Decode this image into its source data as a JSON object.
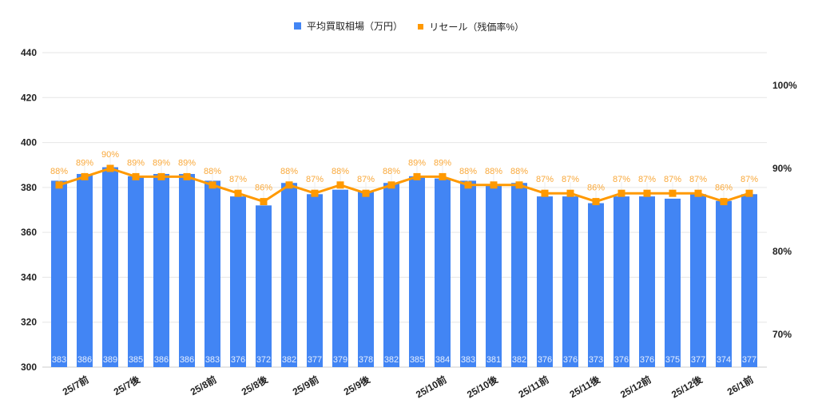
{
  "chart_data": {
    "type": "bar+line",
    "title": "",
    "legend": {
      "position": "top",
      "entries": [
        {
          "label": "平均買取相場（万円）",
          "color": "#4285F4",
          "type": "bar"
        },
        {
          "label": "リセール（残価率%）",
          "color": "#FF9900",
          "type": "line"
        }
      ]
    },
    "categories": [
      "",
      "25/7前",
      "",
      "25/7後",
      "",
      "",
      "25/8前",
      "",
      "25/8後",
      "",
      "25/9前",
      "",
      "25/9後",
      "",
      "",
      "25/10前",
      "",
      "25/10後",
      "",
      "25/11前",
      "",
      "25/11後",
      "",
      "25/12前",
      "",
      "25/12後",
      "",
      "26/1前"
    ],
    "series": [
      {
        "name": "平均買取相場（万円）",
        "axis": "left",
        "type": "bar",
        "color": "#4285F4",
        "values": [
          383,
          386,
          389,
          385,
          386,
          386,
          383,
          376,
          372,
          382,
          377,
          379,
          378,
          382,
          385,
          384,
          383,
          381,
          382,
          376,
          376,
          373,
          376,
          376,
          375,
          377,
          374,
          377
        ]
      },
      {
        "name": "リセール（残価率%）",
        "axis": "right",
        "type": "line",
        "color": "#FF9900",
        "values": [
          88,
          89,
          90,
          89,
          89,
          89,
          88,
          87,
          86,
          88,
          87,
          88,
          87,
          88,
          89,
          89,
          88,
          88,
          88,
          87,
          87,
          86,
          87,
          87,
          87,
          87,
          86,
          87
        ]
      }
    ],
    "left_axis": {
      "ticks": [
        300,
        320,
        340,
        360,
        380,
        400,
        420,
        440
      ],
      "ylim": [
        300,
        440
      ]
    },
    "right_axis": {
      "ticks": [
        "70%",
        "80%",
        "90%",
        "100%"
      ],
      "ylim": [
        66,
        103
      ]
    },
    "grid": true,
    "xlabel": "",
    "ylabel": ""
  }
}
